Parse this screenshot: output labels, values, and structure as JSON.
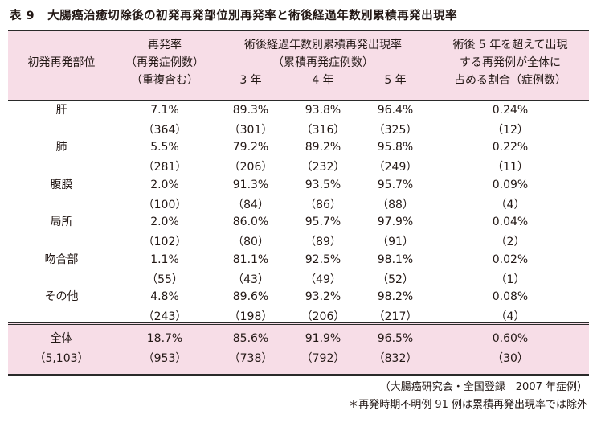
{
  "title": {
    "label": "表 9",
    "text": "大腸癌治癒切除後の初発再発部位別再発率と術後経過年数別累積再発出現率"
  },
  "header": {
    "site": "初発再発部位",
    "rate": [
      "再発率",
      "（再発症例数）",
      "（重複含む）"
    ],
    "cum": [
      "術後経過年数別累積再発出現率",
      "（累積再発症例数）"
    ],
    "years": [
      "3 年",
      "4 年",
      "5 年"
    ],
    "over5": [
      "術後 5 年を超えて出現",
      "する再発例が全体に",
      "占める割合（症例数）"
    ]
  },
  "rows": [
    {
      "site": "肝",
      "rate": "7.1%",
      "rate_n": "（364）",
      "y3": "89.3%",
      "y3_n": "（301）",
      "y4": "93.8%",
      "y4_n": "（316）",
      "y5": "96.4%",
      "y5_n": "（325）",
      "over5": "0.24%",
      "over5_n": "（12）"
    },
    {
      "site": "肺",
      "rate": "5.5%",
      "rate_n": "（281）",
      "y3": "79.2%",
      "y3_n": "（206）",
      "y4": "89.2%",
      "y4_n": "（232）",
      "y5": "95.8%",
      "y5_n": "（249）",
      "over5": "0.22%",
      "over5_n": "（11）"
    },
    {
      "site": "腹膜",
      "rate": "2.0%",
      "rate_n": "（100）",
      "y3": "91.3%",
      "y3_n": "（84）",
      "y4": "93.5%",
      "y4_n": "（86）",
      "y5": "95.7%",
      "y5_n": "（88）",
      "over5": "0.09%",
      "over5_n": "（4）"
    },
    {
      "site": "局所",
      "rate": "2.0%",
      "rate_n": "（102）",
      "y3": "86.0%",
      "y3_n": "（80）",
      "y4": "95.7%",
      "y4_n": "（89）",
      "y5": "97.9%",
      "y5_n": "（91）",
      "over5": "0.04%",
      "over5_n": "（2）"
    },
    {
      "site": "吻合部",
      "rate": "1.1%",
      "rate_n": "（55）",
      "y3": "81.1%",
      "y3_n": "（43）",
      "y4": "92.5%",
      "y4_n": "（49）",
      "y5": "98.1%",
      "y5_n": "（52）",
      "over5": "0.02%",
      "over5_n": "（1）"
    },
    {
      "site": "その他",
      "rate": "4.8%",
      "rate_n": "（243）",
      "y3": "89.6%",
      "y3_n": "（198）",
      "y4": "93.2%",
      "y4_n": "（206）",
      "y5": "98.2%",
      "y5_n": "（217）",
      "over5": "0.08%",
      "over5_n": "（4）"
    }
  ],
  "total": {
    "site": "全体",
    "site_n": "（5,103）",
    "rate": "18.7%",
    "rate_n": "（953）",
    "y3": "85.6%",
    "y3_n": "（738）",
    "y4": "91.9%",
    "y4_n": "（792）",
    "y5": "96.5%",
    "y5_n": "（832）",
    "over5": "0.60%",
    "over5_n": "（30）"
  },
  "notes": {
    "source": "（大腸癌研究会・全国登録　2007 年症例）",
    "footnote": "＊再発時期不明例 91 例は累積再発出現率では除外"
  },
  "colors": {
    "header_bg": "#f7dde7",
    "rule": "#2a2a2a",
    "text": "#231815"
  }
}
